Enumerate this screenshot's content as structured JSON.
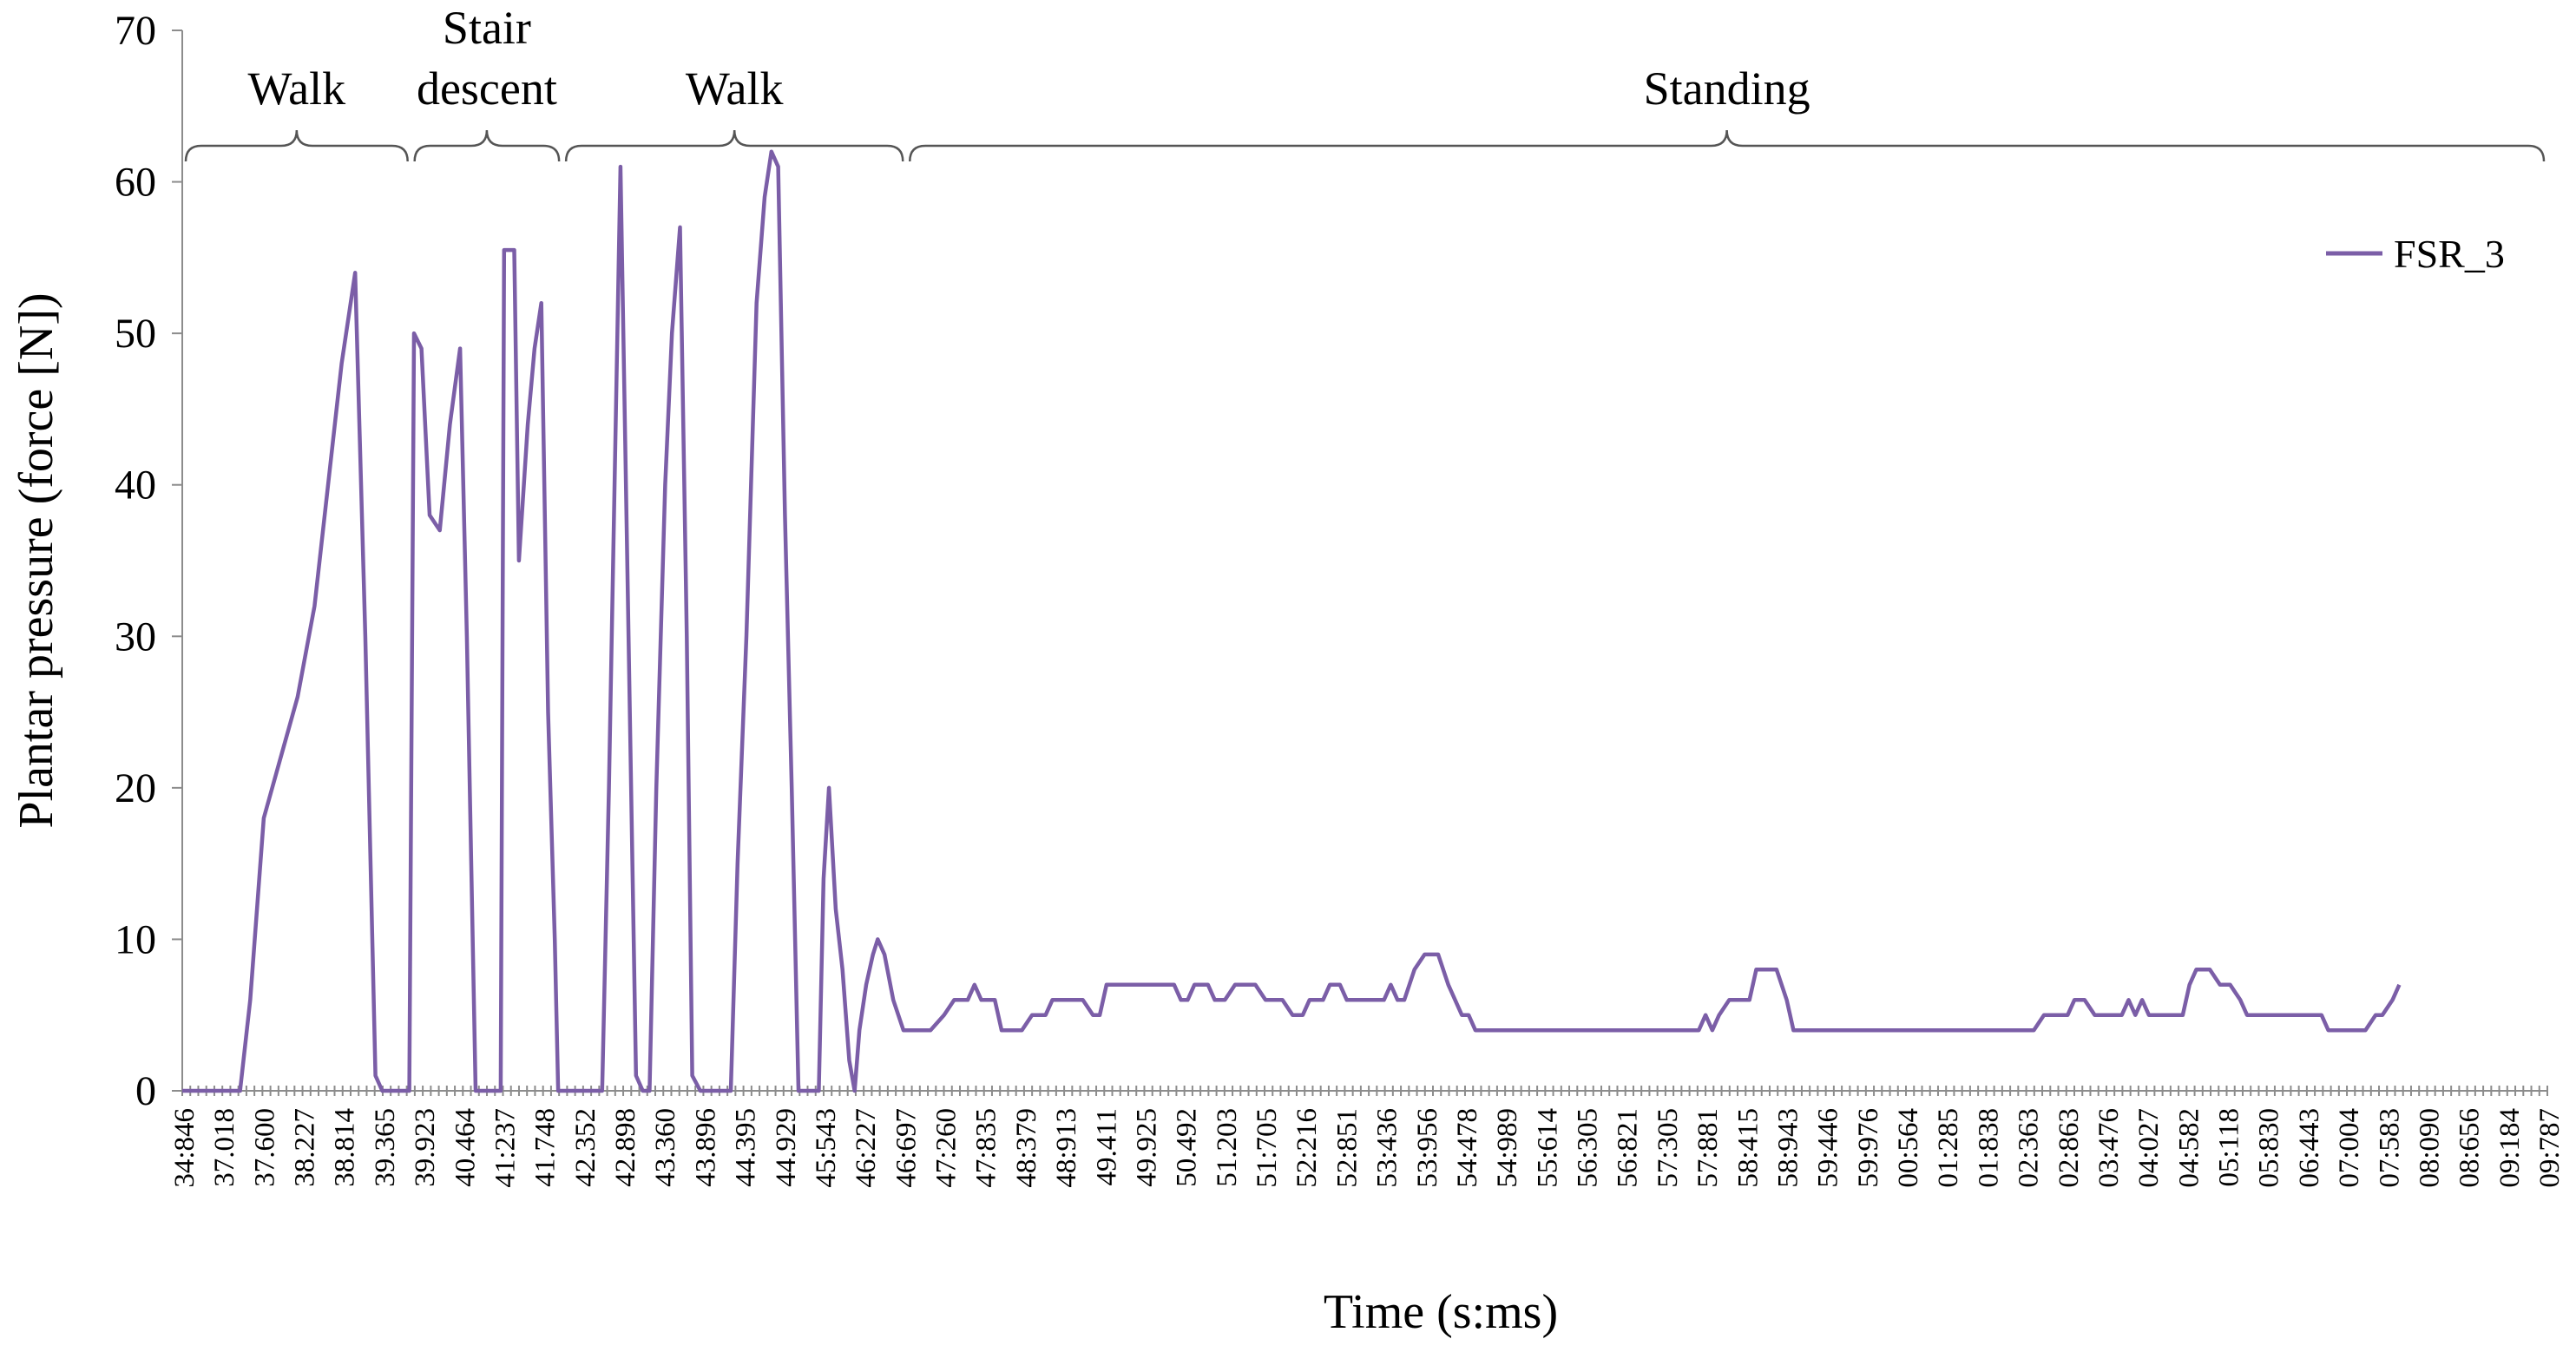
{
  "chart_data": {
    "type": "line",
    "title": "",
    "xlabel": "Time (s:ms)",
    "ylabel": "Plantar pressure (force [N])",
    "ylim": [
      0,
      70
    ],
    "yticks": [
      0,
      10,
      20,
      30,
      40,
      50,
      60,
      70
    ],
    "grid": false,
    "legend_position": "top-right",
    "line_color": "#7b5ea7",
    "x_tick_labels": [
      "34:846",
      "37.018",
      "37.600",
      "38.227",
      "38.814",
      "39.365",
      "39.923",
      "40.464",
      "41:237",
      "41.748",
      "42.352",
      "42.898",
      "43.360",
      "43.896",
      "44.395",
      "44.929",
      "45:543",
      "46:227",
      "46:697",
      "47:260",
      "47:835",
      "48:379",
      "48:913",
      "49.411",
      "49.925",
      "50.492",
      "51.203",
      "51:705",
      "52:216",
      "52:851",
      "53:436",
      "53:956",
      "54:478",
      "54:989",
      "55:614",
      "56:305",
      "56:821",
      "57:305",
      "57:881",
      "58:415",
      "58:943",
      "59:446",
      "59:976",
      "00:564",
      "01:285",
      "01:838",
      "02:363",
      "02:863",
      "03:476",
      "04:027",
      "04:582",
      "05:118",
      "05:830",
      "06:443",
      "07:004",
      "07:583",
      "08:090",
      "08:656",
      "09:184",
      "09:787"
    ],
    "phases": [
      {
        "label": "Walk",
        "start": 34.846,
        "end": 38.227
      },
      {
        "label": "Stair descent",
        "start": 38.227,
        "end": 40.464
      },
      {
        "label": "Walk",
        "start": 40.464,
        "end": 45.543
      },
      {
        "label": "Standing",
        "start": 45.543,
        "end": 69.787
      }
    ],
    "series": [
      {
        "name": "FSR_3",
        "points": [
          [
            34.846,
            0
          ],
          [
            35.7,
            0
          ],
          [
            35.85,
            6
          ],
          [
            36.05,
            18
          ],
          [
            36.3,
            22
          ],
          [
            36.55,
            26
          ],
          [
            36.8,
            32
          ],
          [
            37.0,
            40
          ],
          [
            37.2,
            48
          ],
          [
            37.4,
            54
          ],
          [
            37.55,
            30
          ],
          [
            37.7,
            1
          ],
          [
            37.8,
            0
          ],
          [
            38.2,
            0
          ],
          [
            38.27,
            50
          ],
          [
            38.38,
            49
          ],
          [
            38.5,
            38
          ],
          [
            38.65,
            37
          ],
          [
            38.8,
            44
          ],
          [
            38.95,
            49
          ],
          [
            39.05,
            30
          ],
          [
            39.18,
            0
          ],
          [
            39.55,
            0
          ],
          [
            39.6,
            55.5
          ],
          [
            39.75,
            55.5
          ],
          [
            39.82,
            35
          ],
          [
            39.95,
            44
          ],
          [
            40.05,
            49
          ],
          [
            40.15,
            52
          ],
          [
            40.25,
            25
          ],
          [
            40.35,
            10
          ],
          [
            40.4,
            0
          ],
          [
            41.05,
            0
          ],
          [
            41.15,
            20
          ],
          [
            41.32,
            61
          ],
          [
            41.42,
            35
          ],
          [
            41.55,
            1
          ],
          [
            41.65,
            0
          ],
          [
            41.75,
            0
          ],
          [
            41.85,
            20
          ],
          [
            41.98,
            40
          ],
          [
            42.08,
            50
          ],
          [
            42.2,
            57
          ],
          [
            42.3,
            30
          ],
          [
            42.38,
            1
          ],
          [
            42.5,
            0
          ],
          [
            42.95,
            0
          ],
          [
            43.05,
            15
          ],
          [
            43.18,
            30
          ],
          [
            43.33,
            52
          ],
          [
            43.45,
            59
          ],
          [
            43.55,
            62
          ],
          [
            43.65,
            61
          ],
          [
            43.75,
            38
          ],
          [
            43.85,
            20
          ],
          [
            43.95,
            0
          ],
          [
            44.25,
            0
          ],
          [
            44.32,
            14
          ],
          [
            44.4,
            20
          ],
          [
            44.5,
            12
          ],
          [
            44.6,
            8
          ],
          [
            44.7,
            2
          ],
          [
            44.78,
            0
          ],
          [
            44.85,
            4
          ],
          [
            44.95,
            7
          ],
          [
            45.05,
            9
          ],
          [
            45.12,
            10
          ],
          [
            45.22,
            9
          ],
          [
            45.35,
            6
          ],
          [
            45.5,
            4
          ],
          [
            45.9,
            4
          ],
          [
            46.1,
            5
          ],
          [
            46.25,
            6
          ],
          [
            46.45,
            6
          ],
          [
            46.55,
            7
          ],
          [
            46.65,
            6
          ],
          [
            46.85,
            6
          ],
          [
            46.95,
            4
          ],
          [
            47.25,
            4
          ],
          [
            47.4,
            5
          ],
          [
            47.6,
            5
          ],
          [
            47.7,
            6
          ],
          [
            48.15,
            6
          ],
          [
            48.3,
            5
          ],
          [
            48.4,
            5
          ],
          [
            48.5,
            7
          ],
          [
            49.5,
            7
          ],
          [
            49.6,
            6
          ],
          [
            49.7,
            6
          ],
          [
            49.8,
            7
          ],
          [
            50.0,
            7
          ],
          [
            50.1,
            6
          ],
          [
            50.25,
            6
          ],
          [
            50.4,
            7
          ],
          [
            50.7,
            7
          ],
          [
            50.85,
            6
          ],
          [
            51.1,
            6
          ],
          [
            51.25,
            5
          ],
          [
            51.4,
            5
          ],
          [
            51.5,
            6
          ],
          [
            51.7,
            6
          ],
          [
            51.8,
            7
          ],
          [
            51.95,
            7
          ],
          [
            52.05,
            6
          ],
          [
            52.6,
            6
          ],
          [
            52.7,
            7
          ],
          [
            52.8,
            6
          ],
          [
            52.9,
            6
          ],
          [
            53.05,
            8
          ],
          [
            53.2,
            9
          ],
          [
            53.4,
            9
          ],
          [
            53.55,
            7
          ],
          [
            53.75,
            5
          ],
          [
            53.85,
            5
          ],
          [
            53.95,
            4
          ],
          [
            57.25,
            4
          ],
          [
            57.35,
            5
          ],
          [
            57.45,
            4
          ],
          [
            57.55,
            5
          ],
          [
            57.7,
            6
          ],
          [
            58.0,
            6
          ],
          [
            58.1,
            8
          ],
          [
            58.4,
            8
          ],
          [
            58.55,
            6
          ],
          [
            58.65,
            4
          ],
          [
            62.2,
            4
          ],
          [
            62.35,
            5
          ],
          [
            62.7,
            5
          ],
          [
            62.8,
            6
          ],
          [
            62.95,
            6
          ],
          [
            63.1,
            5
          ],
          [
            63.5,
            5
          ],
          [
            63.6,
            6
          ],
          [
            63.7,
            5
          ],
          [
            63.8,
            6
          ],
          [
            63.9,
            5
          ],
          [
            64.4,
            5
          ],
          [
            64.5,
            7
          ],
          [
            64.6,
            8
          ],
          [
            64.8,
            8
          ],
          [
            64.95,
            7
          ],
          [
            65.1,
            7
          ],
          [
            65.25,
            6
          ],
          [
            65.35,
            5
          ],
          [
            66.45,
            5
          ],
          [
            66.55,
            4
          ],
          [
            67.1,
            4
          ],
          [
            67.25,
            5
          ],
          [
            67.35,
            5
          ],
          [
            67.5,
            6
          ],
          [
            67.6,
            7
          ]
        ]
      }
    ]
  }
}
